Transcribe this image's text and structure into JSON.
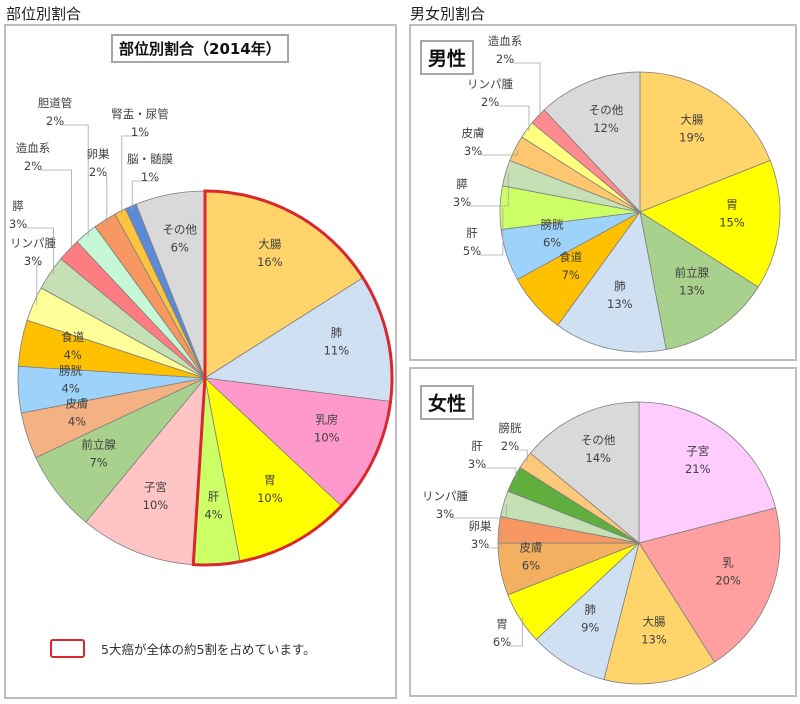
{
  "headings": {
    "left": "部位別割合",
    "right": "男女別割合"
  },
  "legend_text": "5大癌が全体の約5割を占めています。",
  "colors": {
    "highlight": "#d9272e",
    "edge": "#7f7f7f"
  },
  "chart_data": [
    {
      "type": "pie",
      "title": "部位別割合（2014年）",
      "unit": "%",
      "start": "top",
      "direction": "clockwise",
      "highlight_group": [
        "大腸",
        "肺",
        "乳房",
        "胃",
        "肝"
      ],
      "slices": [
        {
          "label": "大腸",
          "value": 16,
          "color": "#ffd56b"
        },
        {
          "label": "肺",
          "value": 11,
          "color": "#cfe0f3"
        },
        {
          "label": "乳房",
          "value": 10,
          "color": "#ff99cc"
        },
        {
          "label": "胃",
          "value": 10,
          "color": "#ffff00"
        },
        {
          "label": "肝",
          "value": 4,
          "color": "#ccff66"
        },
        {
          "label": "子宮",
          "value": 10,
          "color": "#ffc5c5"
        },
        {
          "label": "前立腺",
          "value": 7,
          "color": "#a9d18e"
        },
        {
          "label": "皮膚",
          "value": 4,
          "color": "#f4b183"
        },
        {
          "label": "膀胱",
          "value": 4,
          "color": "#9dd3fb"
        },
        {
          "label": "食道",
          "value": 4,
          "color": "#ffc000"
        },
        {
          "label": "リンパ腫",
          "value": 3,
          "color": "#ffff99"
        },
        {
          "label": "膵",
          "value": 3,
          "color": "#c5e0b4"
        },
        {
          "label": "造血系",
          "value": 2,
          "color": "#ff7c80"
        },
        {
          "label": "胆道管",
          "value": 2,
          "color": "#c6f7d6"
        },
        {
          "label": "卵巣",
          "value": 2,
          "color": "#f79862"
        },
        {
          "label": "腎盂・尿管",
          "value": 1,
          "color": "#fcc33c"
        },
        {
          "label": "脳・髄膜",
          "value": 1,
          "color": "#5b8bd6"
        },
        {
          "label": "その他",
          "value": 6,
          "color": "#d9d9d9"
        }
      ]
    },
    {
      "type": "pie",
      "title": "男性",
      "unit": "%",
      "start": "top",
      "direction": "clockwise",
      "slices": [
        {
          "label": "大腸",
          "value": 19,
          "color": "#ffd56b"
        },
        {
          "label": "胃",
          "value": 15,
          "color": "#ffff00"
        },
        {
          "label": "前立腺",
          "value": 13,
          "color": "#a9d18e"
        },
        {
          "label": "肺",
          "value": 13,
          "color": "#cfe0f3"
        },
        {
          "label": "食道",
          "value": 7,
          "color": "#ffc000"
        },
        {
          "label": "膀胱",
          "value": 6,
          "color": "#9dd3fb"
        },
        {
          "label": "肝",
          "value": 5,
          "color": "#ccff66"
        },
        {
          "label": "膵",
          "value": 3,
          "color": "#c5e0b4"
        },
        {
          "label": "皮膚",
          "value": 3,
          "color": "#fdc66f"
        },
        {
          "label": "リンパ腫",
          "value": 2,
          "color": "#ffff80"
        },
        {
          "label": "造血系",
          "value": 2,
          "color": "#ff8a8f"
        },
        {
          "label": "その他",
          "value": 12,
          "color": "#d9d9d9"
        }
      ]
    },
    {
      "type": "pie",
      "title": "女性",
      "unit": "%",
      "start": "top",
      "direction": "clockwise",
      "slices": [
        {
          "label": "子宮",
          "value": 21,
          "color": "#ffccff"
        },
        {
          "label": "乳",
          "value": 20,
          "color": "#ff9f9f"
        },
        {
          "label": "大腸",
          "value": 13,
          "color": "#ffd56b"
        },
        {
          "label": "肺",
          "value": 9,
          "color": "#cfe0f3"
        },
        {
          "label": "胃",
          "value": 6,
          "color": "#ffff00"
        },
        {
          "label": "皮膚",
          "value": 6,
          "color": "#f2b060"
        },
        {
          "label": "卵巣",
          "value": 3,
          "color": "#f79862"
        },
        {
          "label": "リンパ腫",
          "value": 3,
          "color": "#c5e0b4"
        },
        {
          "label": "肝",
          "value": 3,
          "color": "#5fae3e"
        },
        {
          "label": "膀胱",
          "value": 2,
          "color": "#fcc87a"
        },
        {
          "label": "その他",
          "value": 14,
          "color": "#d9d9d9"
        }
      ]
    }
  ]
}
